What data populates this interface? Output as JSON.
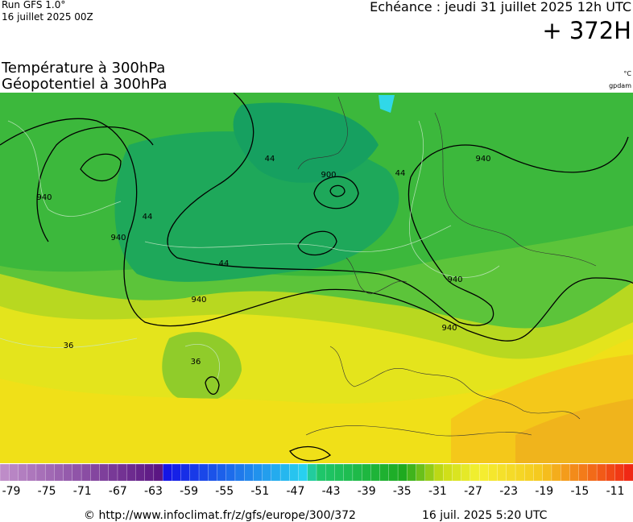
{
  "header": {
    "run": "Run GFS 1.0°",
    "run_date": "16 juillet 2025 00Z",
    "valid": "Echéance : jeudi 31 juillet 2025 12h UTC",
    "lead": "+ 372H",
    "title_line1": "Température à 300hPa",
    "title_line2": "Géopotentiel à 300hPa",
    "unit_temp": "°C",
    "unit_geo": "gpdam"
  },
  "map": {
    "contour_labels": [
      "940",
      "940",
      "940",
      "940",
      "940",
      "900",
      "940",
      "44",
      "44",
      "44",
      "44",
      "36",
      "36"
    ]
  },
  "colorbar": {
    "labels": [
      -79,
      -75,
      -71,
      -67,
      -63,
      -59,
      -55,
      -51,
      -47,
      -43,
      -39,
      -35,
      -31,
      -27,
      -23,
      -19,
      -15,
      -11
    ]
  },
  "footer": {
    "url": "© http://www.infoclimat.fr/z/gfs/europe/300/372",
    "generated": "16 juil. 2025  5:20 UTC"
  }
}
